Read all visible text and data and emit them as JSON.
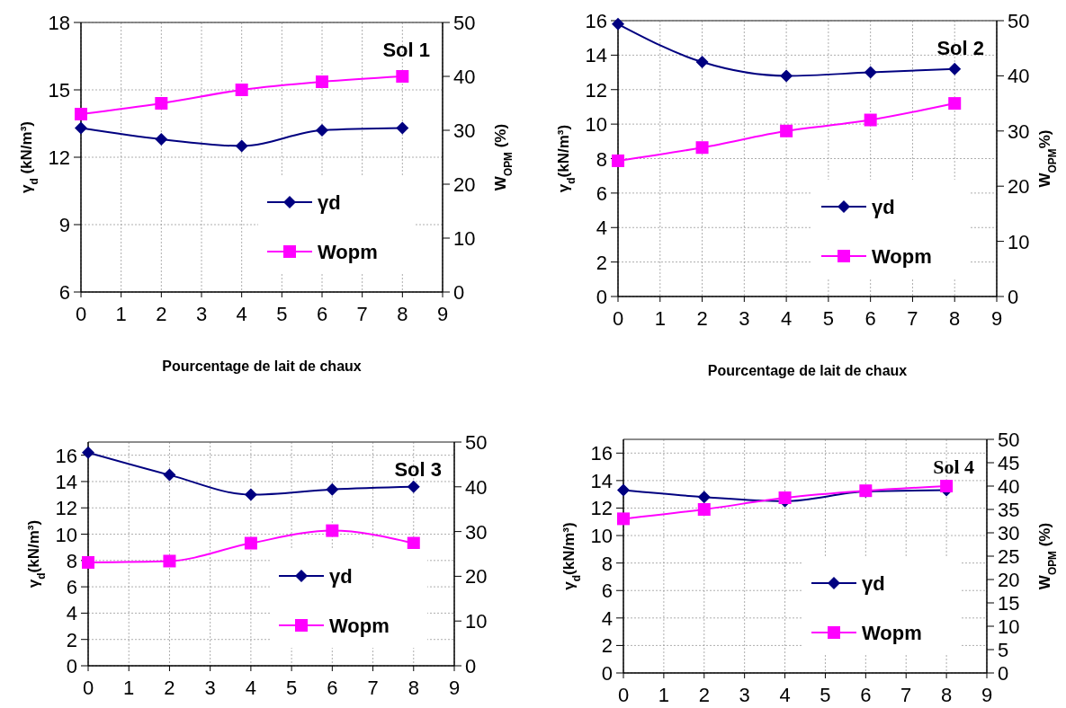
{
  "chart_data": [
    {
      "type": "line",
      "title": "Sol 1",
      "xlabel": "Pourcentage de lait de chaux",
      "ylabel": "γ$_{d}$ (kN/m³)",
      "y2label": "W$_{OPM}$ (%)",
      "x": [
        0,
        2,
        4,
        6,
        8
      ],
      "xlim": [
        0,
        9
      ],
      "xticks": [
        0,
        1,
        2,
        3,
        4,
        5,
        6,
        7,
        8,
        9
      ],
      "ylim": [
        6,
        18
      ],
      "yticks": [
        6,
        9,
        12,
        15,
        18
      ],
      "y2lim": [
        0,
        50
      ],
      "y2ticks": [
        0,
        10,
        20,
        30,
        40,
        50
      ],
      "grid": true,
      "legend": "bottom right",
      "series": [
        {
          "name": "γd",
          "color": "#000080",
          "marker": "diamond",
          "values": [
            13.3,
            12.8,
            12.5,
            13.2,
            13.3
          ]
        },
        {
          "name": "Wopm",
          "color": "#ff00ff",
          "marker": "square",
          "axis": "y2",
          "values": [
            33,
            35,
            37.5,
            39,
            40
          ]
        }
      ]
    },
    {
      "type": "line",
      "title": "Sol 2",
      "xlabel": "Pourcentage de lait de chaux",
      "ylabel": "γ$_{d}$(kN/m³)",
      "y2label": "W$_{OPM}$%)",
      "x": [
        0,
        2,
        4,
        6,
        8
      ],
      "xlim": [
        0,
        9
      ],
      "xticks": [
        0,
        1,
        2,
        3,
        4,
        5,
        6,
        7,
        8,
        9
      ],
      "ylim": [
        0,
        16
      ],
      "yticks": [
        0,
        2,
        4,
        6,
        8,
        10,
        12,
        14,
        16
      ],
      "y2lim": [
        0,
        50
      ],
      "y2ticks": [
        0,
        10,
        20,
        30,
        40,
        50
      ],
      "grid": true,
      "legend": "bottom right",
      "series": [
        {
          "name": "γd",
          "color": "#000080",
          "marker": "diamond",
          "values": [
            15.8,
            13.6,
            12.8,
            13.0,
            13.2
          ]
        },
        {
          "name": "Wopm",
          "color": "#ff00ff",
          "marker": "square",
          "axis": "y2",
          "values": [
            24.6,
            27,
            30,
            32,
            35
          ]
        }
      ]
    },
    {
      "type": "line",
      "title": "Sol 3",
      "ylabel": "γ$_{d}$(kN/m³)",
      "x": [
        0,
        2,
        4,
        6,
        8
      ],
      "xlim": [
        0,
        9
      ],
      "xticks": [
        0,
        1,
        2,
        3,
        4,
        5,
        6,
        7,
        8,
        9
      ],
      "ylim": [
        0,
        17
      ],
      "yticks": [
        0,
        2,
        4,
        6,
        8,
        10,
        12,
        14,
        16
      ],
      "y2lim": [
        0,
        50
      ],
      "y2ticks": [
        0,
        10,
        20,
        30,
        40,
        50
      ],
      "grid": true,
      "legend": "bottom right",
      "series": [
        {
          "name": "γd",
          "color": "#000080",
          "marker": "diamond",
          "values": [
            16.2,
            14.5,
            13.0,
            13.4,
            13.6
          ]
        },
        {
          "name": "Wopm",
          "color": "#ff00ff",
          "marker": "square",
          "axis": "y2",
          "values": [
            23.1,
            23.4,
            27.4,
            30.2,
            27.4
          ]
        }
      ]
    },
    {
      "type": "line",
      "title": "Sol 4",
      "ylabel": "γ$_{d}$(kN/m³)",
      "y2label": "W$_{OPM}$ (%)",
      "x": [
        0,
        2,
        4,
        6,
        8
      ],
      "xlim": [
        0,
        9
      ],
      "xticks": [
        0,
        1,
        2,
        3,
        4,
        5,
        6,
        7,
        8,
        9
      ],
      "ylim": [
        0,
        17
      ],
      "yticks": [
        0,
        2,
        4,
        6,
        8,
        10,
        12,
        14,
        16
      ],
      "y2lim": [
        0,
        50
      ],
      "y2ticks": [
        0,
        5,
        10,
        15,
        20,
        25,
        30,
        35,
        40,
        45,
        50
      ],
      "grid": true,
      "legend": "bottom right",
      "series": [
        {
          "name": "γd",
          "color": "#000080",
          "marker": "diamond",
          "values": [
            13.3,
            12.8,
            12.5,
            13.2,
            13.3
          ]
        },
        {
          "name": "Wopm",
          "color": "#ff00ff",
          "marker": "square",
          "axis": "y2",
          "values": [
            33,
            35,
            37.5,
            39,
            40
          ]
        }
      ]
    }
  ]
}
